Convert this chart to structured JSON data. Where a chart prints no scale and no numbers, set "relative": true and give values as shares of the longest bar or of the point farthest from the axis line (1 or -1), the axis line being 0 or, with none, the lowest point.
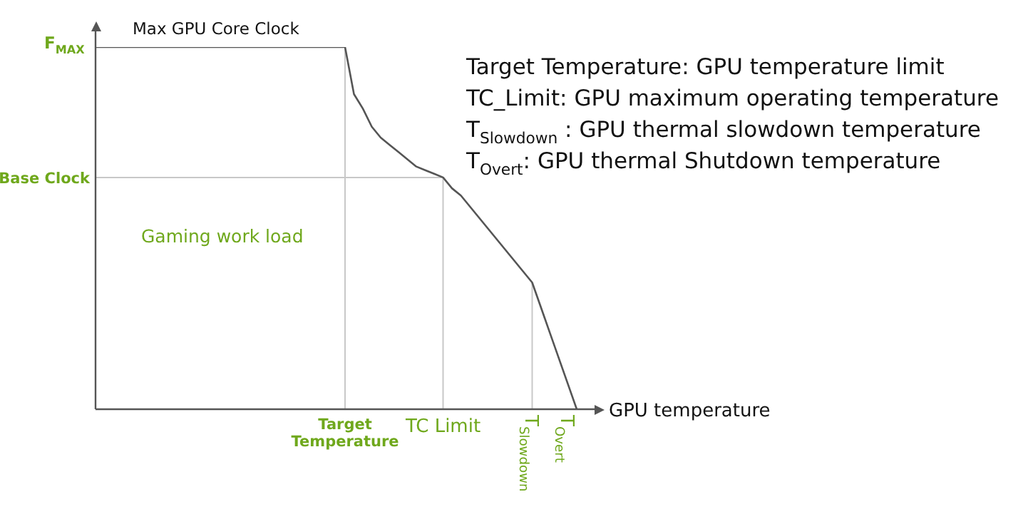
{
  "chart_data": {
    "type": "line",
    "relative": true,
    "xlabel": "GPU temperature",
    "color": "#555555",
    "marker": "none",
    "categories": [
      null,
      null,
      null,
      null,
      null,
      null,
      null,
      null,
      null,
      null,
      null,
      null,
      null,
      null,
      null,
      null,
      null,
      null,
      null,
      null,
      null,
      null,
      null,
      null,
      null,
      null,
      null,
      null,
      "Target Temperature",
      null,
      null,
      null,
      null,
      null,
      null,
      null,
      null,
      null,
      null,
      "TC Limit",
      null,
      null,
      null,
      null,
      null,
      null,
      null,
      null,
      null,
      "T$_{Slowdown}$",
      null,
      null,
      null,
      "T$_{Overt}$",
      null,
      null,
      null
    ],
    "values": [
      1,
      1,
      1,
      1,
      1,
      1,
      1,
      1,
      1,
      1,
      1,
      1,
      1,
      1,
      1,
      1,
      1,
      1,
      1,
      1,
      1,
      1,
      1,
      1,
      1,
      1,
      1,
      1,
      1,
      0.87,
      0.83,
      0.78,
      0.75,
      0.73,
      0.71,
      0.69,
      0.67,
      0.66,
      0.65,
      0.64,
      0.61,
      0.59,
      0.56,
      0.53,
      0.5,
      0.47,
      0.44,
      0.41,
      0.38,
      0.35,
      0.28,
      0.21,
      0.14,
      0.07,
      0,
      null,
      null
    ],
    "ref_lines": [
      {
        "axis": "y",
        "value": 0.64,
        "label": "Base Clock",
        "color": "#c8c8c8"
      },
      {
        "axis": "x",
        "value": "Target Temperature",
        "color": "#c8c8c8"
      },
      {
        "axis": "x",
        "value": "TC Limit",
        "color": "#c8c8c8"
      },
      {
        "axis": "x",
        "value": "T$_{Slowdown}$",
        "color": "#c8c8c8"
      }
    ],
    "annotations": [
      "F$_{MAX}$",
      "Max GPU Core Clock",
      "Gaming work load",
      "Target Temperature: GPU temperature limit",
      "TC_Limit: GPU maximum operating temperature",
      "T$_{Slowdown}$ : GPU thermal slowdown temperature",
      "T$_{Overt}$: GPU thermal Shutdown temperature"
    ]
  }
}
